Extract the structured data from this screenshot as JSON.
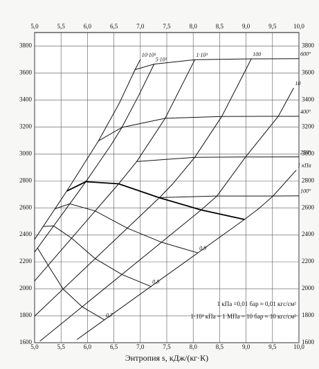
{
  "chart_data": {
    "type": "line",
    "x_label": "Энтропия s, кДж/(кг·К)",
    "notes": [
      "1 кПа =0,01 бар ≈ 0,01 кгс/см²",
      "1·10³ кПа = 1 МПа = 10 бар ≈ 10 кгс/см²"
    ],
    "xlim": [
      5.0,
      10.0
    ],
    "xticks": [
      {
        "value": 5.0,
        "label": "5,0"
      },
      {
        "value": 5.5,
        "label": "5,5"
      },
      {
        "value": 6.0,
        "label": "6,0"
      },
      {
        "value": 6.5,
        "label": "6,5"
      },
      {
        "value": 7.0,
        "label": "7,0"
      },
      {
        "value": 7.5,
        "label": "7,5"
      },
      {
        "value": 8.0,
        "label": "8,0"
      },
      {
        "value": 8.5,
        "label": "8,5"
      },
      {
        "value": 9.0,
        "label": "9,0"
      },
      {
        "value": 9.5,
        "label": "9,5"
      },
      {
        "value": 10.0,
        "label": "10,0"
      }
    ],
    "ylim": [
      1600,
      3900
    ],
    "yticks": [
      1600,
      1800,
      2000,
      2200,
      2400,
      2600,
      2800,
      3000,
      3200,
      3400,
      3600,
      3800
    ],
    "grid": true,
    "series": [
      {
        "name": "10·10³",
        "color": "#111",
        "x": [
          5.0,
          5.61,
          6.21,
          6.6,
          6.9,
          7.0
        ],
        "values": [
          2366,
          2725,
          3097,
          3374,
          3625,
          3700
        ]
      },
      {
        "name": "5·10³",
        "color": "#111",
        "x": [
          5.0,
          5.97,
          6.45,
          6.65,
          6.97,
          7.26
        ],
        "values": [
          2272,
          2794,
          3069,
          3196,
          3434,
          3666
        ]
      },
      {
        "name": "1·10³",
        "color": "#111",
        "x": [
          5.0,
          6.59,
          6.93,
          7.47,
          8.03
        ],
        "values": [
          2058,
          2778,
          2943,
          3264,
          3698
        ]
      },
      {
        "name": "100",
        "color": "#111",
        "x": [
          5.0,
          7.36,
          7.61,
          8.03,
          8.54,
          9.1
        ],
        "values": [
          1797,
          2675,
          2776,
          2975,
          3278,
          3705
        ]
      },
      {
        "name": "10",
        "color": "#111",
        "x": [
          5.1,
          8.15,
          8.45,
          8.99,
          9.61,
          9.9
        ],
        "values": [
          1611,
          2584,
          2688,
          2977,
          3279,
          3489
        ]
      },
      {
        "name": "1 кПа",
        "color": "#111",
        "x": [
          5.8,
          8.97,
          9.24,
          9.51,
          9.95
        ],
        "values": [
          1623,
          2514,
          2594,
          2688,
          2880
        ]
      },
      {
        "name": "600°",
        "color": "#111",
        "x": [
          6.9,
          7.26,
          8.03,
          9.1,
          10.0
        ],
        "values": [
          3625,
          3666,
          3698,
          3705,
          3706
        ]
      },
      {
        "name": "400°",
        "color": "#111",
        "x": [
          6.21,
          6.65,
          7.47,
          8.54,
          9.61,
          10.0
        ],
        "values": [
          3097,
          3196,
          3264,
          3278,
          3279,
          3279
        ]
      },
      {
        "name": "250°",
        "color": "#111",
        "x": [
          6.93,
          8.03,
          8.99,
          10.0
        ],
        "values": [
          2943,
          2975,
          2977,
          2978
        ]
      },
      {
        "name": "100°",
        "color": "#111",
        "x": [
          7.36,
          8.45,
          9.51,
          10.0
        ],
        "values": [
          2676,
          2688,
          2688,
          2689
        ]
      },
      {
        "color": "#000",
        "x": [
          5.61,
          5.97,
          6.59,
          7.36,
          8.15,
          8.97
        ],
        "values": [
          2725,
          2794,
          2778,
          2675,
          2584,
          2514
        ]
      },
      {
        "name": "0,9",
        "color": "#111",
        "x": [
          5.385,
          5.665,
          6.145,
          6.754,
          7.4,
          8.09
        ],
        "values": [
          2593,
          2630,
          2577,
          2449,
          2345,
          2266
        ]
      },
      {
        "name": "0,8",
        "color": "#111",
        "x": [
          5.16,
          5.36,
          5.7,
          6.148,
          6.65,
          7.2
        ],
        "values": [
          2462,
          2466,
          2375,
          2223,
          2106,
          2017
        ]
      },
      {
        "name": "0,7",
        "color": "#111",
        "x": [
          5.055,
          5.255,
          5.54,
          5.9,
          6.32
        ],
        "values": [
          2302,
          2174,
          1998,
          1866,
          1769
        ]
      }
    ]
  }
}
